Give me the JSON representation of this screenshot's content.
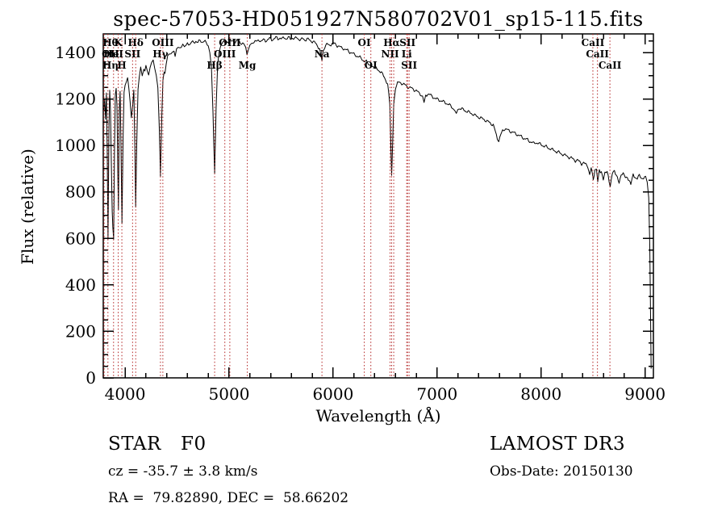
{
  "footer": {
    "object_class": "STAR",
    "subclass": "F0",
    "survey": "LAMOST DR3",
    "cz": "cz = -35.7 ± 3.8 km/s",
    "obs_date": "Obs-Date: 20150130",
    "radec": "RA =  79.82890, DEC =  58.66202"
  },
  "chart_data": {
    "type": "line",
    "title": "spec-57053-HD051927N580702V01_sp15-115.fits",
    "xlabel": "Wavelength (Å)",
    "ylabel": "Flux (relative)",
    "xlim": [
      3790,
      9080
    ],
    "ylim": [
      0,
      1480
    ],
    "xticks": [
      4000,
      5000,
      6000,
      7000,
      8000,
      9000
    ],
    "yticks": [
      0,
      200,
      400,
      600,
      800,
      1000,
      1200,
      1400
    ],
    "x_minor_step": 200,
    "y_minor_step": 50,
    "grid": false,
    "line_color": "#000000",
    "marker_line_color": "#b22222",
    "spectral_lines": [
      {
        "wavelength": 3727,
        "label": "OII",
        "row": 1
      },
      {
        "wavelength": 3798,
        "label": "Hθ",
        "row": 0
      },
      {
        "wavelength": 3835,
        "label": "Hη",
        "row": 2
      },
      {
        "wavelength": 3889,
        "label": "HeI",
        "row": 1
      },
      {
        "wavelength": 3934,
        "label": "K",
        "row": 0
      },
      {
        "wavelength": 3969,
        "label": "H",
        "row": 2
      },
      {
        "wavelength": 4072,
        "label": "SII",
        "row": 1
      },
      {
        "wavelength": 4102,
        "label": "Hδ",
        "row": 0
      },
      {
        "wavelength": 4340,
        "label": "Hγ",
        "row": 1
      },
      {
        "wavelength": 4363,
        "label": "OIII",
        "row": 0
      },
      {
        "wavelength": 4861,
        "label": "Hβ",
        "row": 2
      },
      {
        "wavelength": 4959,
        "label": "OIII",
        "row": 1
      },
      {
        "wavelength": 5007,
        "label": "OIII",
        "row": 0
      },
      {
        "wavelength": 5175,
        "label": "Mg",
        "row": 2
      },
      {
        "wavelength": 5893,
        "label": "Na",
        "row": 1
      },
      {
        "wavelength": 6300,
        "label": "OI",
        "row": 0
      },
      {
        "wavelength": 6363,
        "label": "OI",
        "row": 2
      },
      {
        "wavelength": 6548,
        "label": "NII",
        "row": 1
      },
      {
        "wavelength": 6563,
        "label": "Hα",
        "row": 0
      },
      {
        "wavelength": 6583,
        "label": "",
        "row": 1
      },
      {
        "wavelength": 6708,
        "label": "Li",
        "row": 1
      },
      {
        "wavelength": 6716,
        "label": "SII",
        "row": 0
      },
      {
        "wavelength": 6731,
        "label": "SII",
        "row": 2
      },
      {
        "wavelength": 8498,
        "label": "CaII",
        "row": 0
      },
      {
        "wavelength": 8542,
        "label": "CaII",
        "row": 1
      },
      {
        "wavelength": 8662,
        "label": "CaII",
        "row": 2
      }
    ],
    "spectrum": [
      [
        3795,
        1150
      ],
      [
        3803,
        1215
      ],
      [
        3812,
        1120
      ],
      [
        3820,
        1230
      ],
      [
        3828,
        990
      ],
      [
        3836,
        615
      ],
      [
        3845,
        1090
      ],
      [
        3852,
        1235
      ],
      [
        3860,
        1150
      ],
      [
        3868,
        905
      ],
      [
        3876,
        700
      ],
      [
        3882,
        640
      ],
      [
        3890,
        605
      ],
      [
        3898,
        980
      ],
      [
        3906,
        1225
      ],
      [
        3914,
        1255
      ],
      [
        3922,
        1190
      ],
      [
        3930,
        900
      ],
      [
        3936,
        705
      ],
      [
        3944,
        1135
      ],
      [
        3952,
        1230
      ],
      [
        3960,
        1010
      ],
      [
        3970,
        645
      ],
      [
        3980,
        1015
      ],
      [
        3990,
        1235
      ],
      [
        4000,
        1265
      ],
      [
        4012,
        1272
      ],
      [
        4024,
        1288
      ],
      [
        4036,
        1255
      ],
      [
        4048,
        1180
      ],
      [
        4060,
        1125
      ],
      [
        4072,
        1170
      ],
      [
        4084,
        1232
      ],
      [
        4094,
        1000
      ],
      [
        4102,
        748
      ],
      [
        4112,
        1012
      ],
      [
        4124,
        1232
      ],
      [
        4136,
        1300
      ],
      [
        4150,
        1322
      ],
      [
        4165,
        1312
      ],
      [
        4180,
        1332
      ],
      [
        4200,
        1345
      ],
      [
        4215,
        1332
      ],
      [
        4227,
        1298
      ],
      [
        4240,
        1338
      ],
      [
        4255,
        1352
      ],
      [
        4270,
        1356
      ],
      [
        4285,
        1346
      ],
      [
        4300,
        1302
      ],
      [
        4315,
        1242
      ],
      [
        4330,
        1052
      ],
      [
        4340,
        862
      ],
      [
        4352,
        1122
      ],
      [
        4364,
        1282
      ],
      [
        4376,
        1312
      ],
      [
        4383,
        1292
      ],
      [
        4395,
        1362
      ],
      [
        4410,
        1382
      ],
      [
        4425,
        1392
      ],
      [
        4440,
        1396
      ],
      [
        4455,
        1406
      ],
      [
        4470,
        1400
      ],
      [
        4481,
        1386
      ],
      [
        4495,
        1412
      ],
      [
        4510,
        1422
      ],
      [
        4525,
        1426
      ],
      [
        4540,
        1420
      ],
      [
        4555,
        1432
      ],
      [
        4570,
        1426
      ],
      [
        4585,
        1436
      ],
      [
        4600,
        1440
      ],
      [
        4620,
        1436
      ],
      [
        4640,
        1446
      ],
      [
        4660,
        1440
      ],
      [
        4680,
        1450
      ],
      [
        4700,
        1444
      ],
      [
        4720,
        1450
      ],
      [
        4740,
        1446
      ],
      [
        4760,
        1450
      ],
      [
        4780,
        1440
      ],
      [
        4800,
        1430
      ],
      [
        4815,
        1400
      ],
      [
        4830,
        1330
      ],
      [
        4845,
        1150
      ],
      [
        4861,
        880
      ],
      [
        4875,
        1160
      ],
      [
        4890,
        1342
      ],
      [
        4905,
        1410
      ],
      [
        4920,
        1430
      ],
      [
        4935,
        1440
      ],
      [
        4950,
        1446
      ],
      [
        4965,
        1440
      ],
      [
        4980,
        1446
      ],
      [
        5000,
        1450
      ],
      [
        5020,
        1446
      ],
      [
        5040,
        1450
      ],
      [
        5060,
        1446
      ],
      [
        5080,
        1450
      ],
      [
        5100,
        1446
      ],
      [
        5120,
        1440
      ],
      [
        5140,
        1436
      ],
      [
        5160,
        1420
      ],
      [
        5172,
        1396
      ],
      [
        5185,
        1406
      ],
      [
        5200,
        1430
      ],
      [
        5215,
        1440
      ],
      [
        5230,
        1446
      ],
      [
        5250,
        1450
      ],
      [
        5270,
        1446
      ],
      [
        5290,
        1454
      ],
      [
        5310,
        1450
      ],
      [
        5330,
        1454
      ],
      [
        5350,
        1450
      ],
      [
        5370,
        1456
      ],
      [
        5390,
        1460
      ],
      [
        5410,
        1454
      ],
      [
        5430,
        1460
      ],
      [
        5450,
        1464
      ],
      [
        5470,
        1458
      ],
      [
        5490,
        1464
      ],
      [
        5510,
        1458
      ],
      [
        5530,
        1464
      ],
      [
        5550,
        1460
      ],
      [
        5570,
        1464
      ],
      [
        5590,
        1458
      ],
      [
        5610,
        1464
      ],
      [
        5630,
        1458
      ],
      [
        5650,
        1464
      ],
      [
        5670,
        1458
      ],
      [
        5690,
        1454
      ],
      [
        5710,
        1460
      ],
      [
        5730,
        1454
      ],
      [
        5750,
        1458
      ],
      [
        5770,
        1454
      ],
      [
        5790,
        1450
      ],
      [
        5810,
        1446
      ],
      [
        5830,
        1440
      ],
      [
        5850,
        1430
      ],
      [
        5870,
        1415
      ],
      [
        5885,
        1392
      ],
      [
        5893,
        1372
      ],
      [
        5905,
        1402
      ],
      [
        5920,
        1426
      ],
      [
        5940,
        1436
      ],
      [
        5960,
        1430
      ],
      [
        5980,
        1436
      ],
      [
        6000,
        1440
      ],
      [
        6020,
        1436
      ],
      [
        6040,
        1430
      ],
      [
        6060,
        1426
      ],
      [
        6080,
        1420
      ],
      [
        6100,
        1418
      ],
      [
        6120,
        1412
      ],
      [
        6140,
        1408
      ],
      [
        6160,
        1402
      ],
      [
        6180,
        1398
      ],
      [
        6200,
        1392
      ],
      [
        6220,
        1388
      ],
      [
        6240,
        1382
      ],
      [
        6260,
        1378
      ],
      [
        6280,
        1372
      ],
      [
        6300,
        1362
      ],
      [
        6320,
        1360
      ],
      [
        6340,
        1352
      ],
      [
        6363,
        1340
      ],
      [
        6385,
        1342
      ],
      [
        6405,
        1335
      ],
      [
        6425,
        1328
      ],
      [
        6445,
        1322
      ],
      [
        6465,
        1312
      ],
      [
        6485,
        1300
      ],
      [
        6505,
        1285
      ],
      [
        6525,
        1260
      ],
      [
        6545,
        1180
      ],
      [
        6555,
        1000
      ],
      [
        6563,
        870
      ],
      [
        6572,
        1010
      ],
      [
        6583,
        1180
      ],
      [
        6600,
        1250
      ],
      [
        6620,
        1268
      ],
      [
        6640,
        1272
      ],
      [
        6660,
        1268
      ],
      [
        6680,
        1262
      ],
      [
        6700,
        1258
      ],
      [
        6720,
        1252
      ],
      [
        6740,
        1248
      ],
      [
        6760,
        1245
      ],
      [
        6780,
        1240
      ],
      [
        6800,
        1235
      ],
      [
        6820,
        1228
      ],
      [
        6840,
        1222
      ],
      [
        6860,
        1210
      ],
      [
        6875,
        1192
      ],
      [
        6890,
        1215
      ],
      [
        6910,
        1222
      ],
      [
        6930,
        1218
      ],
      [
        6950,
        1212
      ],
      [
        6970,
        1206
      ],
      [
        6990,
        1200
      ],
      [
        7010,
        1198
      ],
      [
        7030,
        1194
      ],
      [
        7050,
        1190
      ],
      [
        7070,
        1186
      ],
      [
        7090,
        1182
      ],
      [
        7110,
        1176
      ],
      [
        7130,
        1170
      ],
      [
        7150,
        1162
      ],
      [
        7170,
        1152
      ],
      [
        7185,
        1140
      ],
      [
        7200,
        1158
      ],
      [
        7220,
        1160
      ],
      [
        7240,
        1156
      ],
      [
        7260,
        1152
      ],
      [
        7280,
        1148
      ],
      [
        7300,
        1144
      ],
      [
        7320,
        1140
      ],
      [
        7340,
        1136
      ],
      [
        7360,
        1130
      ],
      [
        7380,
        1126
      ],
      [
        7400,
        1122
      ],
      [
        7420,
        1118
      ],
      [
        7440,
        1114
      ],
      [
        7460,
        1110
      ],
      [
        7480,
        1104
      ],
      [
        7500,
        1100
      ],
      [
        7520,
        1094
      ],
      [
        7540,
        1088
      ],
      [
        7560,
        1060
      ],
      [
        7580,
        1030
      ],
      [
        7593,
        1012
      ],
      [
        7610,
        1042
      ],
      [
        7630,
        1064
      ],
      [
        7650,
        1072
      ],
      [
        7670,
        1068
      ],
      [
        7690,
        1064
      ],
      [
        7710,
        1060
      ],
      [
        7730,
        1056
      ],
      [
        7750,
        1052
      ],
      [
        7770,
        1048
      ],
      [
        7790,
        1042
      ],
      [
        7810,
        1038
      ],
      [
        7830,
        1032
      ],
      [
        7850,
        1028
      ],
      [
        7870,
        1024
      ],
      [
        7890,
        1018
      ],
      [
        7910,
        1014
      ],
      [
        7930,
        1008
      ],
      [
        7950,
        1013
      ],
      [
        7970,
        1010
      ],
      [
        7990,
        1005
      ],
      [
        8010,
        1002
      ],
      [
        8030,
        997
      ],
      [
        8050,
        994
      ],
      [
        8070,
        989
      ],
      [
        8090,
        986
      ],
      [
        8110,
        981
      ],
      [
        8130,
        978
      ],
      [
        8150,
        973
      ],
      [
        8170,
        970
      ],
      [
        8190,
        965
      ],
      [
        8210,
        962
      ],
      [
        8230,
        957
      ],
      [
        8250,
        954
      ],
      [
        8270,
        949
      ],
      [
        8290,
        946
      ],
      [
        8310,
        941
      ],
      [
        8330,
        938
      ],
      [
        8350,
        933
      ],
      [
        8370,
        930
      ],
      [
        8390,
        925
      ],
      [
        8410,
        922
      ],
      [
        8430,
        918
      ],
      [
        8450,
        914
      ],
      [
        8467,
        878
      ],
      [
        8482,
        906
      ],
      [
        8502,
        860
      ],
      [
        8518,
        900
      ],
      [
        8532,
        892
      ],
      [
        8545,
        852
      ],
      [
        8560,
        896
      ],
      [
        8580,
        890
      ],
      [
        8598,
        858
      ],
      [
        8614,
        888
      ],
      [
        8635,
        882
      ],
      [
        8665,
        830
      ],
      [
        8685,
        880
      ],
      [
        8705,
        884
      ],
      [
        8725,
        878
      ],
      [
        8750,
        845
      ],
      [
        8770,
        876
      ],
      [
        8790,
        872
      ],
      [
        8810,
        868
      ],
      [
        8830,
        866
      ],
      [
        8863,
        842
      ],
      [
        8885,
        868
      ],
      [
        8905,
        864
      ],
      [
        8925,
        862
      ],
      [
        8945,
        866
      ],
      [
        8965,
        860
      ],
      [
        8985,
        864
      ],
      [
        9005,
        858
      ],
      [
        9020,
        846
      ],
      [
        9035,
        780
      ],
      [
        9045,
        580
      ],
      [
        9052,
        300
      ],
      [
        9058,
        40
      ]
    ]
  }
}
